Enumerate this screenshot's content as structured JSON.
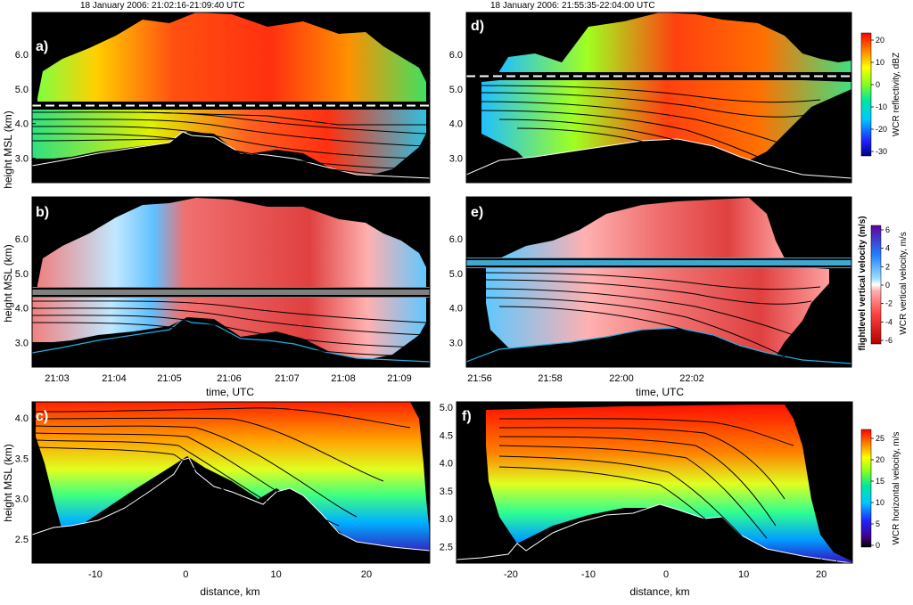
{
  "figure": {
    "header_left": "18 January 2006: 21:02:16-21:09:40 UTC",
    "header_right": "18 January 2006: 21:55:35-22:04:00 UTC",
    "time_axis_title": "time, UTC",
    "distance_axis_title": "distance, km",
    "height_axis_title": "height MSL (km)"
  },
  "colors": {
    "background": "#000000",
    "flight_line": "#ffffff",
    "terrain_line": "#ffffff"
  },
  "colorbars": [
    {
      "title": "WCR reflectivity, dBZ",
      "ticks": [
        "20",
        "10",
        "0",
        "-10",
        "-20",
        "-30"
      ],
      "colormap": "jet"
    },
    {
      "title": "WCR vertical velocity, m/s",
      "title2": "flightlevel  vertical velocity (m/s)",
      "ticks": [
        "6",
        "4",
        "2",
        "0",
        "-2",
        "-4",
        "-6"
      ],
      "colormap": "diverging"
    },
    {
      "title": "WCR horizontal velocity, m/s",
      "ticks": [
        "25",
        "20",
        "15",
        "10",
        "5",
        "0"
      ],
      "colormap": "jet"
    }
  ],
  "chart_data": [
    {
      "panel": "a)",
      "type": "heatmap",
      "variable": "reflectivity",
      "xaxis": "time",
      "ylim": [
        2.3,
        7.2
      ],
      "yticks": [
        "6.0",
        "5.0",
        "4.0",
        "3.0"
      ],
      "flight_level_km": 4.3,
      "xtick_labels": []
    },
    {
      "panel": "d)",
      "type": "heatmap",
      "variable": "reflectivity",
      "xaxis": "time",
      "ylim": [
        2.3,
        7.2
      ],
      "yticks": [
        "6.0",
        "5.0",
        "4.0",
        "3.0"
      ],
      "flight_level_km": 5.15,
      "xtick_labels": []
    },
    {
      "panel": "b)",
      "type": "heatmap",
      "variable": "vertical_velocity",
      "xaxis": "time",
      "ylim": [
        2.3,
        7.2
      ],
      "yticks": [
        "6.0",
        "5.0",
        "4.0",
        "3.0"
      ],
      "flight_level_km": 4.3,
      "xtick_labels": [
        "21:03",
        "21:04",
        "21:05",
        "21:06",
        "21:07",
        "21:08",
        "21:09"
      ]
    },
    {
      "panel": "e)",
      "type": "heatmap",
      "variable": "vertical_velocity",
      "xaxis": "time",
      "ylim": [
        2.3,
        7.2
      ],
      "yticks": [
        "6.0",
        "5.0",
        "4.0",
        "3.0"
      ],
      "flight_level_km": 5.15,
      "xtick_labels": [
        "21:56",
        "21:58",
        "22:00",
        "22:02"
      ]
    },
    {
      "panel": "c)",
      "type": "heatmap",
      "variable": "horizontal_velocity",
      "xaxis": "distance",
      "xlim": [
        -17,
        27
      ],
      "ylim": [
        2.2,
        4.2
      ],
      "yticks": [
        "4.0",
        "3.5",
        "3.0",
        "2.5"
      ],
      "xticks": [
        -10,
        0,
        10,
        20
      ],
      "xtick_labels": [
        "-10",
        "0",
        "10",
        "20"
      ]
    },
    {
      "panel": "f)",
      "type": "heatmap",
      "variable": "horizontal_velocity",
      "xaxis": "distance",
      "xlim": [
        -27,
        24
      ],
      "ylim": [
        2.2,
        5.1
      ],
      "yticks": [
        "5.0",
        "4.5",
        "4.0",
        "3.5",
        "3.0",
        "2.5"
      ],
      "xticks": [
        -20,
        -10,
        0,
        10,
        20
      ],
      "xtick_labels": [
        "-20",
        "-10",
        "0",
        "10",
        "20"
      ]
    }
  ]
}
